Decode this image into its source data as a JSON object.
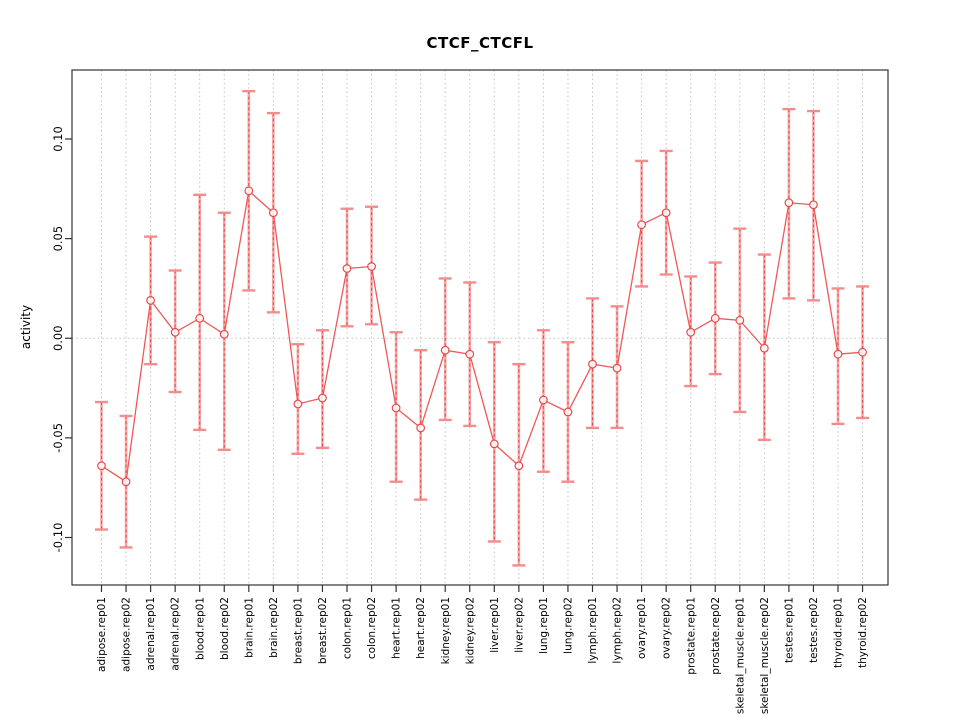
{
  "title": "CTCF_CTCFL",
  "chart_data": {
    "type": "scatter",
    "title": "CTCF_CTCFL",
    "xlabel": "",
    "ylabel": "activity",
    "ylim": [
      -0.124,
      0.135
    ],
    "yticks": [
      -0.1,
      -0.05,
      0.0,
      0.05,
      0.1
    ],
    "ytick_labels": [
      "-0.10",
      "-0.05",
      "0.00",
      "0.05",
      "0.10"
    ],
    "grid": "vertical dotted line at every category; horizontal dotted line at 0",
    "legend": "none",
    "marker": "open-circle",
    "error_bars": true,
    "categories": [
      "adipose.rep01",
      "adipose.rep02",
      "adrenal.rep01",
      "adrenal.rep02",
      "blood.rep01",
      "blood.rep02",
      "brain.rep01",
      "brain.rep02",
      "breast.rep01",
      "breast.rep02",
      "colon.rep01",
      "colon.rep02",
      "heart.rep01",
      "heart.rep02",
      "kidney.rep01",
      "kidney.rep02",
      "liver.rep01",
      "liver.rep02",
      "lung.rep01",
      "lung.rep02",
      "lymph.rep01",
      "lymph.rep02",
      "ovary.rep01",
      "ovary.rep02",
      "prostate.rep01",
      "prostate.rep02",
      "skeletal_muscle.rep01",
      "skeletal_muscle.rep02",
      "testes.rep01",
      "testes.rep02",
      "thyroid.rep01",
      "thyroid.rep02"
    ],
    "series": [
      {
        "name": "activity",
        "values": [
          -0.064,
          -0.072,
          0.019,
          0.003,
          0.01,
          0.002,
          0.074,
          0.063,
          -0.033,
          -0.03,
          0.035,
          0.036,
          -0.035,
          -0.045,
          -0.006,
          -0.008,
          -0.053,
          -0.064,
          -0.031,
          -0.037,
          -0.013,
          -0.015,
          0.057,
          0.063,
          0.003,
          0.01,
          0.009,
          -0.005,
          0.068,
          0.067,
          -0.008,
          -0.007
        ]
      },
      {
        "name": "ci_lower",
        "values": [
          -0.096,
          -0.105,
          -0.013,
          -0.027,
          -0.046,
          -0.056,
          0.024,
          0.013,
          -0.058,
          -0.055,
          0.006,
          0.007,
          -0.072,
          -0.081,
          -0.041,
          -0.044,
          -0.102,
          -0.114,
          -0.067,
          -0.072,
          -0.045,
          -0.045,
          0.026,
          0.032,
          -0.024,
          -0.018,
          -0.037,
          -0.051,
          0.02,
          0.019,
          -0.043,
          -0.04
        ]
      },
      {
        "name": "ci_upper",
        "values": [
          -0.032,
          -0.039,
          0.051,
          0.034,
          0.072,
          0.063,
          0.124,
          0.113,
          -0.003,
          0.004,
          0.065,
          0.066,
          0.003,
          -0.006,
          0.03,
          0.028,
          -0.002,
          -0.013,
          0.004,
          -0.002,
          0.02,
          0.016,
          0.089,
          0.094,
          0.031,
          0.038,
          0.055,
          0.042,
          0.115,
          0.114,
          0.025,
          0.026
        ]
      }
    ]
  },
  "colors": {
    "marker": "#e84848",
    "stem": "#f7a8a8",
    "stem_dash": "#e84848",
    "cap": "#f58c8c",
    "connector": "#ef5858",
    "grid": "#c4c4c4",
    "axis": "#333333",
    "text": "#000000"
  }
}
